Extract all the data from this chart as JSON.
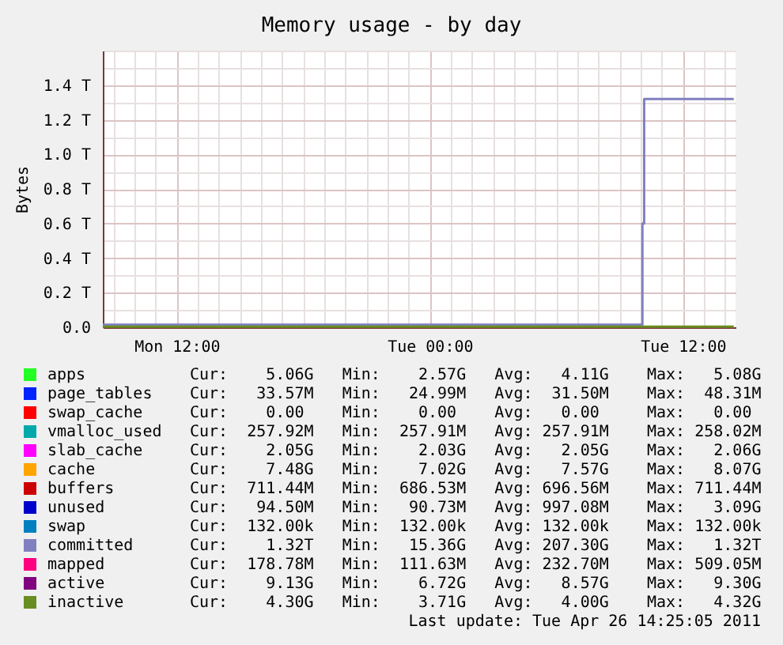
{
  "chart_data": {
    "type": "step",
    "title": "Memory usage - by day",
    "ylabel": "Bytes",
    "x": [
      "2011-04-25T08:30",
      "2011-04-26T14:25"
    ],
    "xlim": [
      "2011-04-25T08:30",
      "2011-04-26T14:30"
    ],
    "xticks": [
      {
        "value": "2011-04-25T09:00",
        "label": null
      },
      {
        "value": "2011-04-25T10:00",
        "label": null
      },
      {
        "value": "2011-04-25T11:00",
        "label": null
      },
      {
        "value": "2011-04-25T12:00",
        "label": "Mon 12:00"
      },
      {
        "value": "2011-04-25T13:00",
        "label": null
      },
      {
        "value": "2011-04-25T14:00",
        "label": null
      },
      {
        "value": "2011-04-25T15:00",
        "label": null
      },
      {
        "value": "2011-04-25T16:00",
        "label": null
      },
      {
        "value": "2011-04-25T17:00",
        "label": null
      },
      {
        "value": "2011-04-25T18:00",
        "label": null
      },
      {
        "value": "2011-04-25T19:00",
        "label": null
      },
      {
        "value": "2011-04-25T20:00",
        "label": null
      },
      {
        "value": "2011-04-25T21:00",
        "label": null
      },
      {
        "value": "2011-04-25T22:00",
        "label": null
      },
      {
        "value": "2011-04-25T23:00",
        "label": null
      },
      {
        "value": "2011-04-26T00:00",
        "label": "Tue 00:00"
      },
      {
        "value": "2011-04-26T01:00",
        "label": null
      },
      {
        "value": "2011-04-26T02:00",
        "label": null
      },
      {
        "value": "2011-04-26T03:00",
        "label": null
      },
      {
        "value": "2011-04-26T04:00",
        "label": null
      },
      {
        "value": "2011-04-26T05:00",
        "label": null
      },
      {
        "value": "2011-04-26T06:00",
        "label": null
      },
      {
        "value": "2011-04-26T07:00",
        "label": null
      },
      {
        "value": "2011-04-26T08:00",
        "label": null
      },
      {
        "value": "2011-04-26T09:00",
        "label": null
      },
      {
        "value": "2011-04-26T10:00",
        "label": null
      },
      {
        "value": "2011-04-26T11:00",
        "label": null
      },
      {
        "value": "2011-04-26T12:00",
        "label": "Tue 12:00"
      },
      {
        "value": "2011-04-26T13:00",
        "label": null
      },
      {
        "value": "2011-04-26T14:00",
        "label": null
      }
    ],
    "ylim": [
      0,
      1.6
    ],
    "yticks": [
      {
        "value": 0,
        "label": "0.0"
      },
      {
        "value": 0.1,
        "label": null
      },
      {
        "value": 0.2,
        "label": "0.2 T"
      },
      {
        "value": 0.3,
        "label": null
      },
      {
        "value": 0.4,
        "label": "0.4 T"
      },
      {
        "value": 0.5,
        "label": null
      },
      {
        "value": 0.6,
        "label": "0.6 T"
      },
      {
        "value": 0.7,
        "label": null
      },
      {
        "value": 0.8,
        "label": "0.8 T"
      },
      {
        "value": 0.9,
        "label": null
      },
      {
        "value": 1.0,
        "label": "1.0 T"
      },
      {
        "value": 1.1,
        "label": null
      },
      {
        "value": 1.2,
        "label": "1.2 T"
      },
      {
        "value": 1.3,
        "label": null
      },
      {
        "value": 1.4,
        "label": "1.4 T"
      },
      {
        "value": 1.5,
        "label": null
      },
      {
        "value": 1.6,
        "label": null
      }
    ],
    "grid": true,
    "legend": "bottom",
    "series": [
      {
        "name": "apps",
        "color": "#22ff22",
        "values": [
          null,
          null
        ]
      },
      {
        "name": "page_tables",
        "color": "#0022ff",
        "values": [
          null,
          null
        ]
      },
      {
        "name": "swap_cache",
        "color": "#ff0000",
        "values": [
          null,
          null
        ]
      },
      {
        "name": "vmalloc_used",
        "color": "#00aaaa",
        "values": [
          null,
          null
        ]
      },
      {
        "name": "slab_cache",
        "color": "#ff00ff",
        "values": [
          null,
          null
        ]
      },
      {
        "name": "cache",
        "color": "#ffa500",
        "values": [
          null,
          null
        ]
      },
      {
        "name": "buffers",
        "color": "#cc0000",
        "values": [
          null,
          null
        ]
      },
      {
        "name": "unused",
        "color": "#0000cc",
        "values": [
          null,
          null
        ]
      },
      {
        "name": "swap",
        "color": "#0080c0",
        "values": [
          null,
          null
        ]
      },
      {
        "name": "committed",
        "color": "#8080c0",
        "x": [
          "2011-04-25T08:30",
          "2011-04-26T10:05",
          "2011-04-26T10:10",
          "2011-04-26T14:25"
        ],
        "values": [
          0.015,
          0.6,
          1.32,
          1.32
        ]
      },
      {
        "name": "mapped",
        "color": "#ff0080",
        "values": [
          null,
          null
        ]
      },
      {
        "name": "active",
        "color": "#800080",
        "values": [
          null,
          null
        ]
      },
      {
        "name": "inactive",
        "color": "#688e23",
        "values": [
          0.004,
          0.004
        ]
      }
    ],
    "annotations": [
      "Cur:    5.06G   Min:    2.57G   Avg:   4.11G    Max:   5.08G",
      "Cur:   33.57M   Min:   24.99M   Avg:  31.50M    Max:  48.31M",
      "Cur:    0.00    Min:    0.00    Avg:   0.00     Max:   0.00",
      "Cur:  257.92M   Min:  257.91M   Avg: 257.91M    Max: 258.02M",
      "Cur:    2.05G   Min:    2.03G   Avg:   2.05G    Max:   2.06G",
      "Cur:    7.48G   Min:    7.02G   Avg:   7.57G    Max:   8.07G",
      "Cur:  711.44M   Min:  686.53M   Avg: 696.56M    Max: 711.44M",
      "Cur:   94.50M   Min:   90.73M   Avg: 997.08M    Max:   3.09G",
      "Cur:  132.00k   Min:  132.00k   Avg: 132.00k    Max: 132.00k",
      "Cur:    1.32T   Min:   15.36G   Avg: 207.30G    Max:   1.32T",
      "Cur:  178.78M   Min:  111.63M   Avg: 232.70M    Max: 509.05M",
      "Cur:    9.13G   Min:    6.72G   Avg:   8.57G    Max:   9.30G",
      "Cur:    4.30G   Min:    3.71G   Avg:   4.00G    Max:   4.32G",
      "Last update: Tue Apr 26 14:25:05 2011"
    ]
  }
}
